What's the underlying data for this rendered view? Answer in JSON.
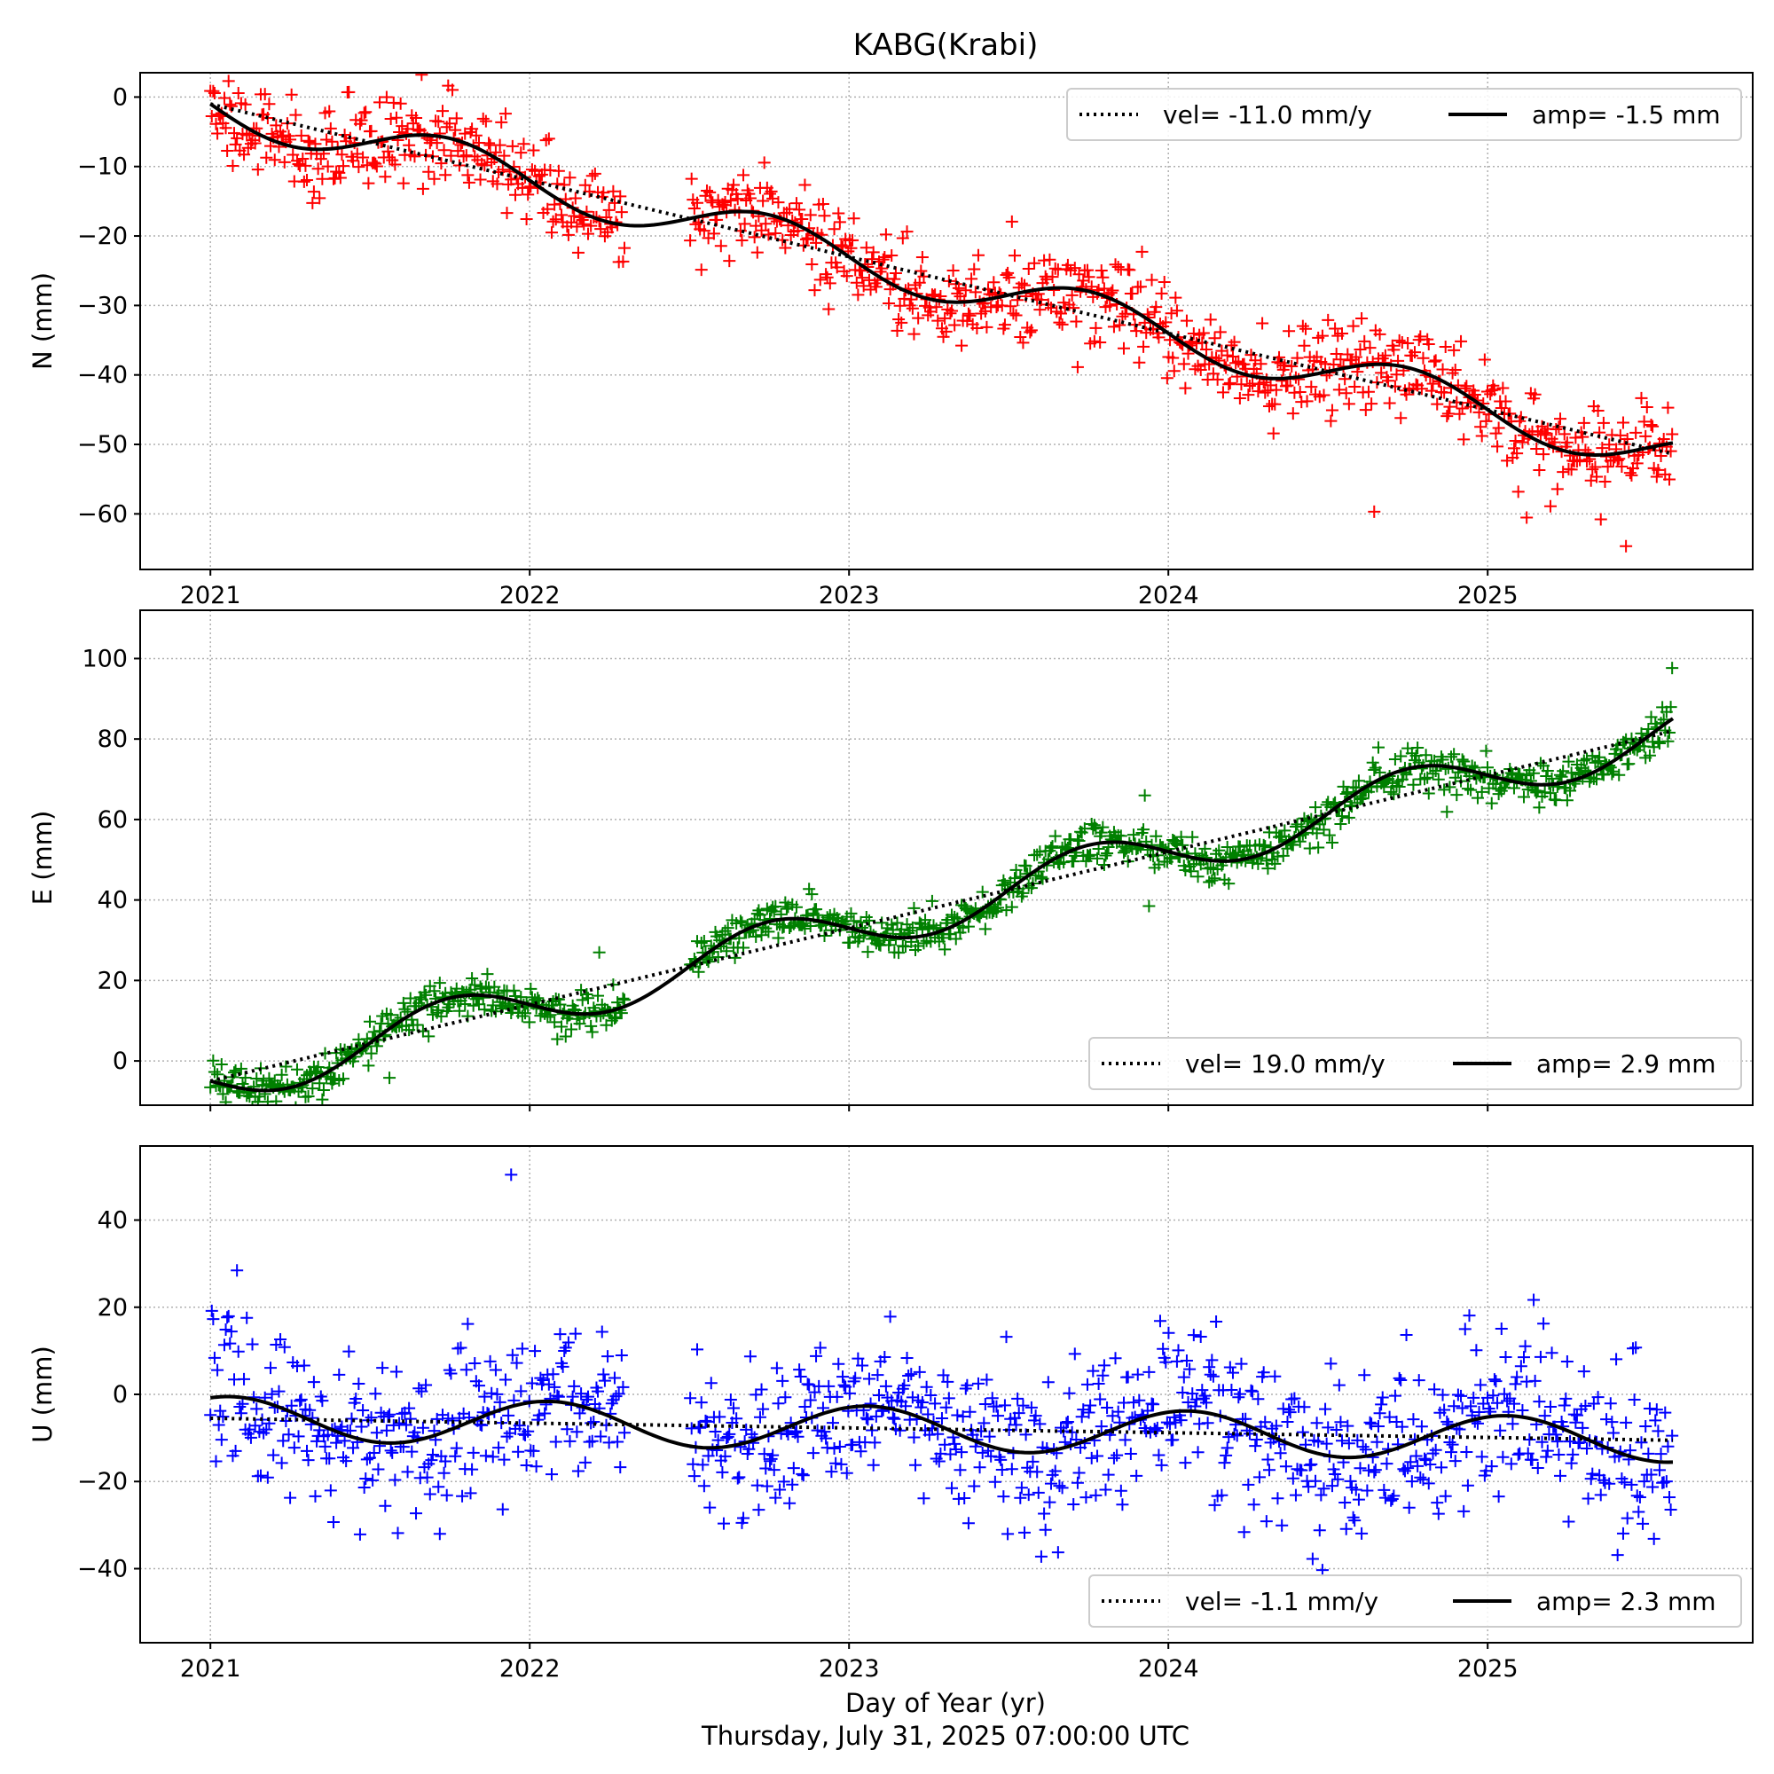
{
  "figure": {
    "title": "KABG(Krabi)",
    "xlabel": "Day of Year (yr)",
    "timestamp": "Thursday, July 31, 2025 07:00:00 UTC"
  },
  "chart_data": [
    {
      "type": "scatter",
      "component": "N",
      "ylabel": "N (mm)",
      "xlim": [
        2020.78,
        2025.83
      ],
      "ylim": [
        -68,
        3.5
      ],
      "xticks": [
        2021,
        2022,
        2023,
        2024,
        2025
      ],
      "xtick_labels": [
        "2021",
        "2022",
        "2023",
        "2024",
        "2025"
      ],
      "yticks": [
        0,
        -10,
        -20,
        -30,
        -40,
        -50,
        -60
      ],
      "ytick_labels": [
        "0",
        "−10",
        "−20",
        "−30",
        "−40",
        "−50",
        "−60"
      ],
      "grid": true,
      "legend_position": "top-right",
      "marker_color": "#ff0000",
      "data_span": [
        2021.0,
        2025.58
      ],
      "gaps": [
        [
          2022.3,
          2022.5
        ]
      ],
      "trend": {
        "vel": -11.0,
        "y_at_2021": -1.0
      },
      "seasonal": {
        "amp": -1.5,
        "phase": 0
      },
      "scatter_sd": 3.2,
      "legend": {
        "vel_label": "vel= -11.0 mm/y",
        "amp_label": "amp= -1.5 mm"
      }
    },
    {
      "type": "scatter",
      "component": "E",
      "ylabel": "E (mm)",
      "xlim": [
        2020.78,
        2025.83
      ],
      "ylim": [
        -11,
        112
      ],
      "xticks": [
        2021,
        2022,
        2023,
        2024,
        2025
      ],
      "xtick_labels": [
        "",
        "",
        "",
        "",
        ""
      ],
      "yticks": [
        0,
        20,
        40,
        60,
        80,
        100
      ],
      "ytick_labels": [
        "0",
        "20",
        "40",
        "60",
        "80",
        "100"
      ],
      "grid": true,
      "legend_position": "bottom-right",
      "marker_color": "#008000",
      "data_span": [
        2021.0,
        2025.58
      ],
      "gaps": [
        [
          2022.3,
          2022.5
        ]
      ],
      "trend": {
        "vel": 19.0,
        "y_at_2021": -5.0
      },
      "seasonal": {
        "amp": 2.9,
        "phase": 3.14
      },
      "scatter_sd": 2.5,
      "legend": {
        "vel_label": "vel= 19.0 mm/y",
        "amp_label": "amp= 2.9 mm"
      }
    },
    {
      "type": "scatter",
      "component": "U",
      "ylabel": "U (mm)",
      "xlim": [
        2020.78,
        2025.83
      ],
      "ylim": [
        -57,
        57
      ],
      "xticks": [
        2021,
        2022,
        2023,
        2024,
        2025
      ],
      "xtick_labels": [
        "2021",
        "2022",
        "2023",
        "2024",
        "2025"
      ],
      "yticks": [
        40,
        20,
        0,
        -20,
        -40
      ],
      "ytick_labels": [
        "40",
        "20",
        "0",
        "−20",
        "−40"
      ],
      "grid": true,
      "legend_position": "bottom-right",
      "marker_color": "#0000ff",
      "data_span": [
        2021.0,
        2025.58
      ],
      "gaps": [
        [
          2022.3,
          2022.5
        ]
      ],
      "trend": {
        "vel": -1.1,
        "y_at_2021": -5.5
      },
      "seasonal": {
        "amp": 2.3,
        "phase": 1.2
      },
      "scatter_sd": 9.0,
      "legend": {
        "vel_label": "vel= -1.1 mm/y",
        "amp_label": "amp= 2.3 mm"
      }
    }
  ]
}
